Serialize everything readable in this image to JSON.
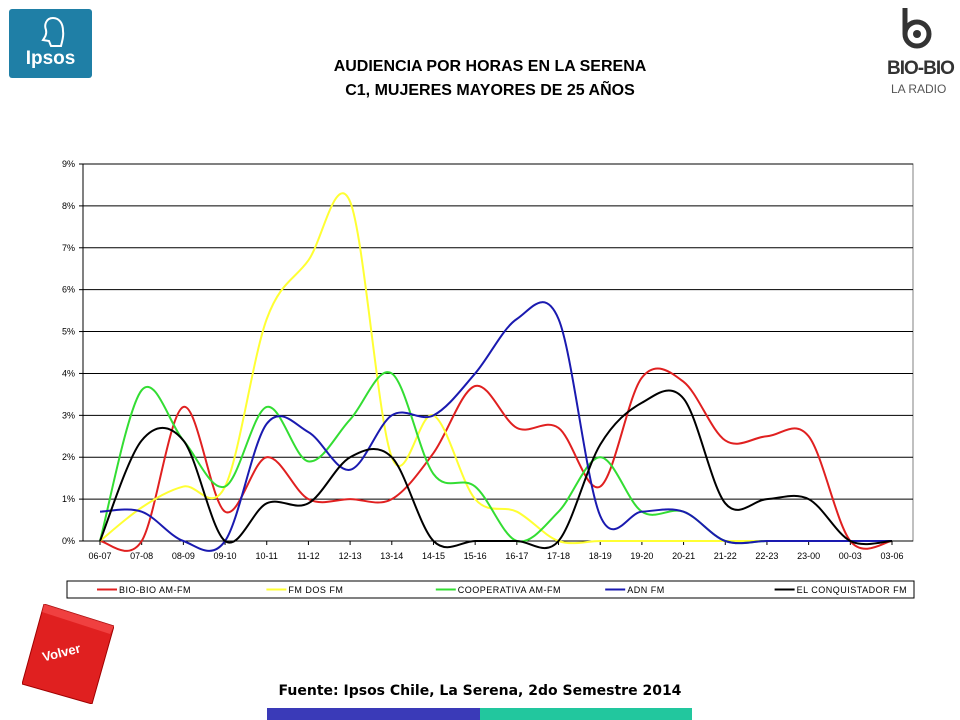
{
  "logos": {
    "left_text": "Ipsos",
    "right_text": "BIO-BIO",
    "right_sub": "LA RADIO",
    "left_color": "#1f7fa6"
  },
  "chart_data": {
    "type": "line",
    "title": "AUDIENCIA POR HORAS EN LA SERENA",
    "subtitle": "C1, MUJERES MAYORES DE 25 AÑOS",
    "categories": [
      "06-07",
      "07-08",
      "08-09",
      "09-10",
      "10-11",
      "11-12",
      "12-13",
      "13-14",
      "14-15",
      "15-16",
      "16-17",
      "17-18",
      "18-19",
      "19-20",
      "20-21",
      "21-22",
      "22-23",
      "23-00",
      "00-03",
      "03-06"
    ],
    "y_ticks": [
      "0%",
      "1%",
      "2%",
      "3%",
      "4%",
      "5%",
      "6%",
      "7%",
      "8%",
      "9%"
    ],
    "ylim": [
      0,
      9
    ],
    "grid": true,
    "legend_position": "bottom",
    "series": [
      {
        "name": "BIO-BIO AM-FM",
        "color": "#e02020",
        "values": [
          0,
          0,
          3.2,
          0.7,
          2.0,
          1.0,
          1.0,
          1.0,
          2.1,
          3.7,
          2.7,
          2.7,
          1.3,
          3.9,
          3.8,
          2.4,
          2.5,
          2.5,
          0,
          0
        ]
      },
      {
        "name": "FM DOS FM",
        "color": "#ffff33",
        "values": [
          0,
          0.8,
          1.3,
          1.3,
          5.3,
          6.7,
          8.1,
          2.0,
          3.0,
          1.0,
          0.7,
          0,
          0,
          0,
          0,
          0,
          0,
          0,
          0,
          0
        ]
      },
      {
        "name": "COOPERATIVA AM-FM",
        "color": "#33dd33",
        "values": [
          0,
          3.6,
          2.4,
          1.3,
          3.2,
          1.9,
          2.9,
          4.0,
          1.6,
          1.3,
          0,
          0.7,
          2.0,
          0.7,
          0.7,
          0,
          0,
          0,
          0,
          0
        ]
      },
      {
        "name": "ADN FM",
        "color": "#1a1ab0",
        "values": [
          0.7,
          0.7,
          0,
          0,
          2.8,
          2.6,
          1.7,
          3.0,
          3.0,
          4.0,
          5.3,
          5.3,
          0.6,
          0.7,
          0.7,
          0,
          0,
          0,
          0,
          0
        ]
      },
      {
        "name": "EL CONQUISTADOR FM",
        "color": "#000000",
        "values": [
          0,
          2.4,
          2.4,
          0,
          0.9,
          0.9,
          2.0,
          2.0,
          0,
          0,
          0,
          0,
          2.3,
          3.3,
          3.4,
          0.9,
          1.0,
          1.0,
          0,
          0
        ]
      }
    ]
  },
  "volver": {
    "label": "Volver",
    "color": "#e02020"
  },
  "source": "Fuente: Ipsos Chile, La Serena, 2do Semestre 2014",
  "footer_colors": {
    "left": "#3a3ab8",
    "right": "#22c79e"
  }
}
